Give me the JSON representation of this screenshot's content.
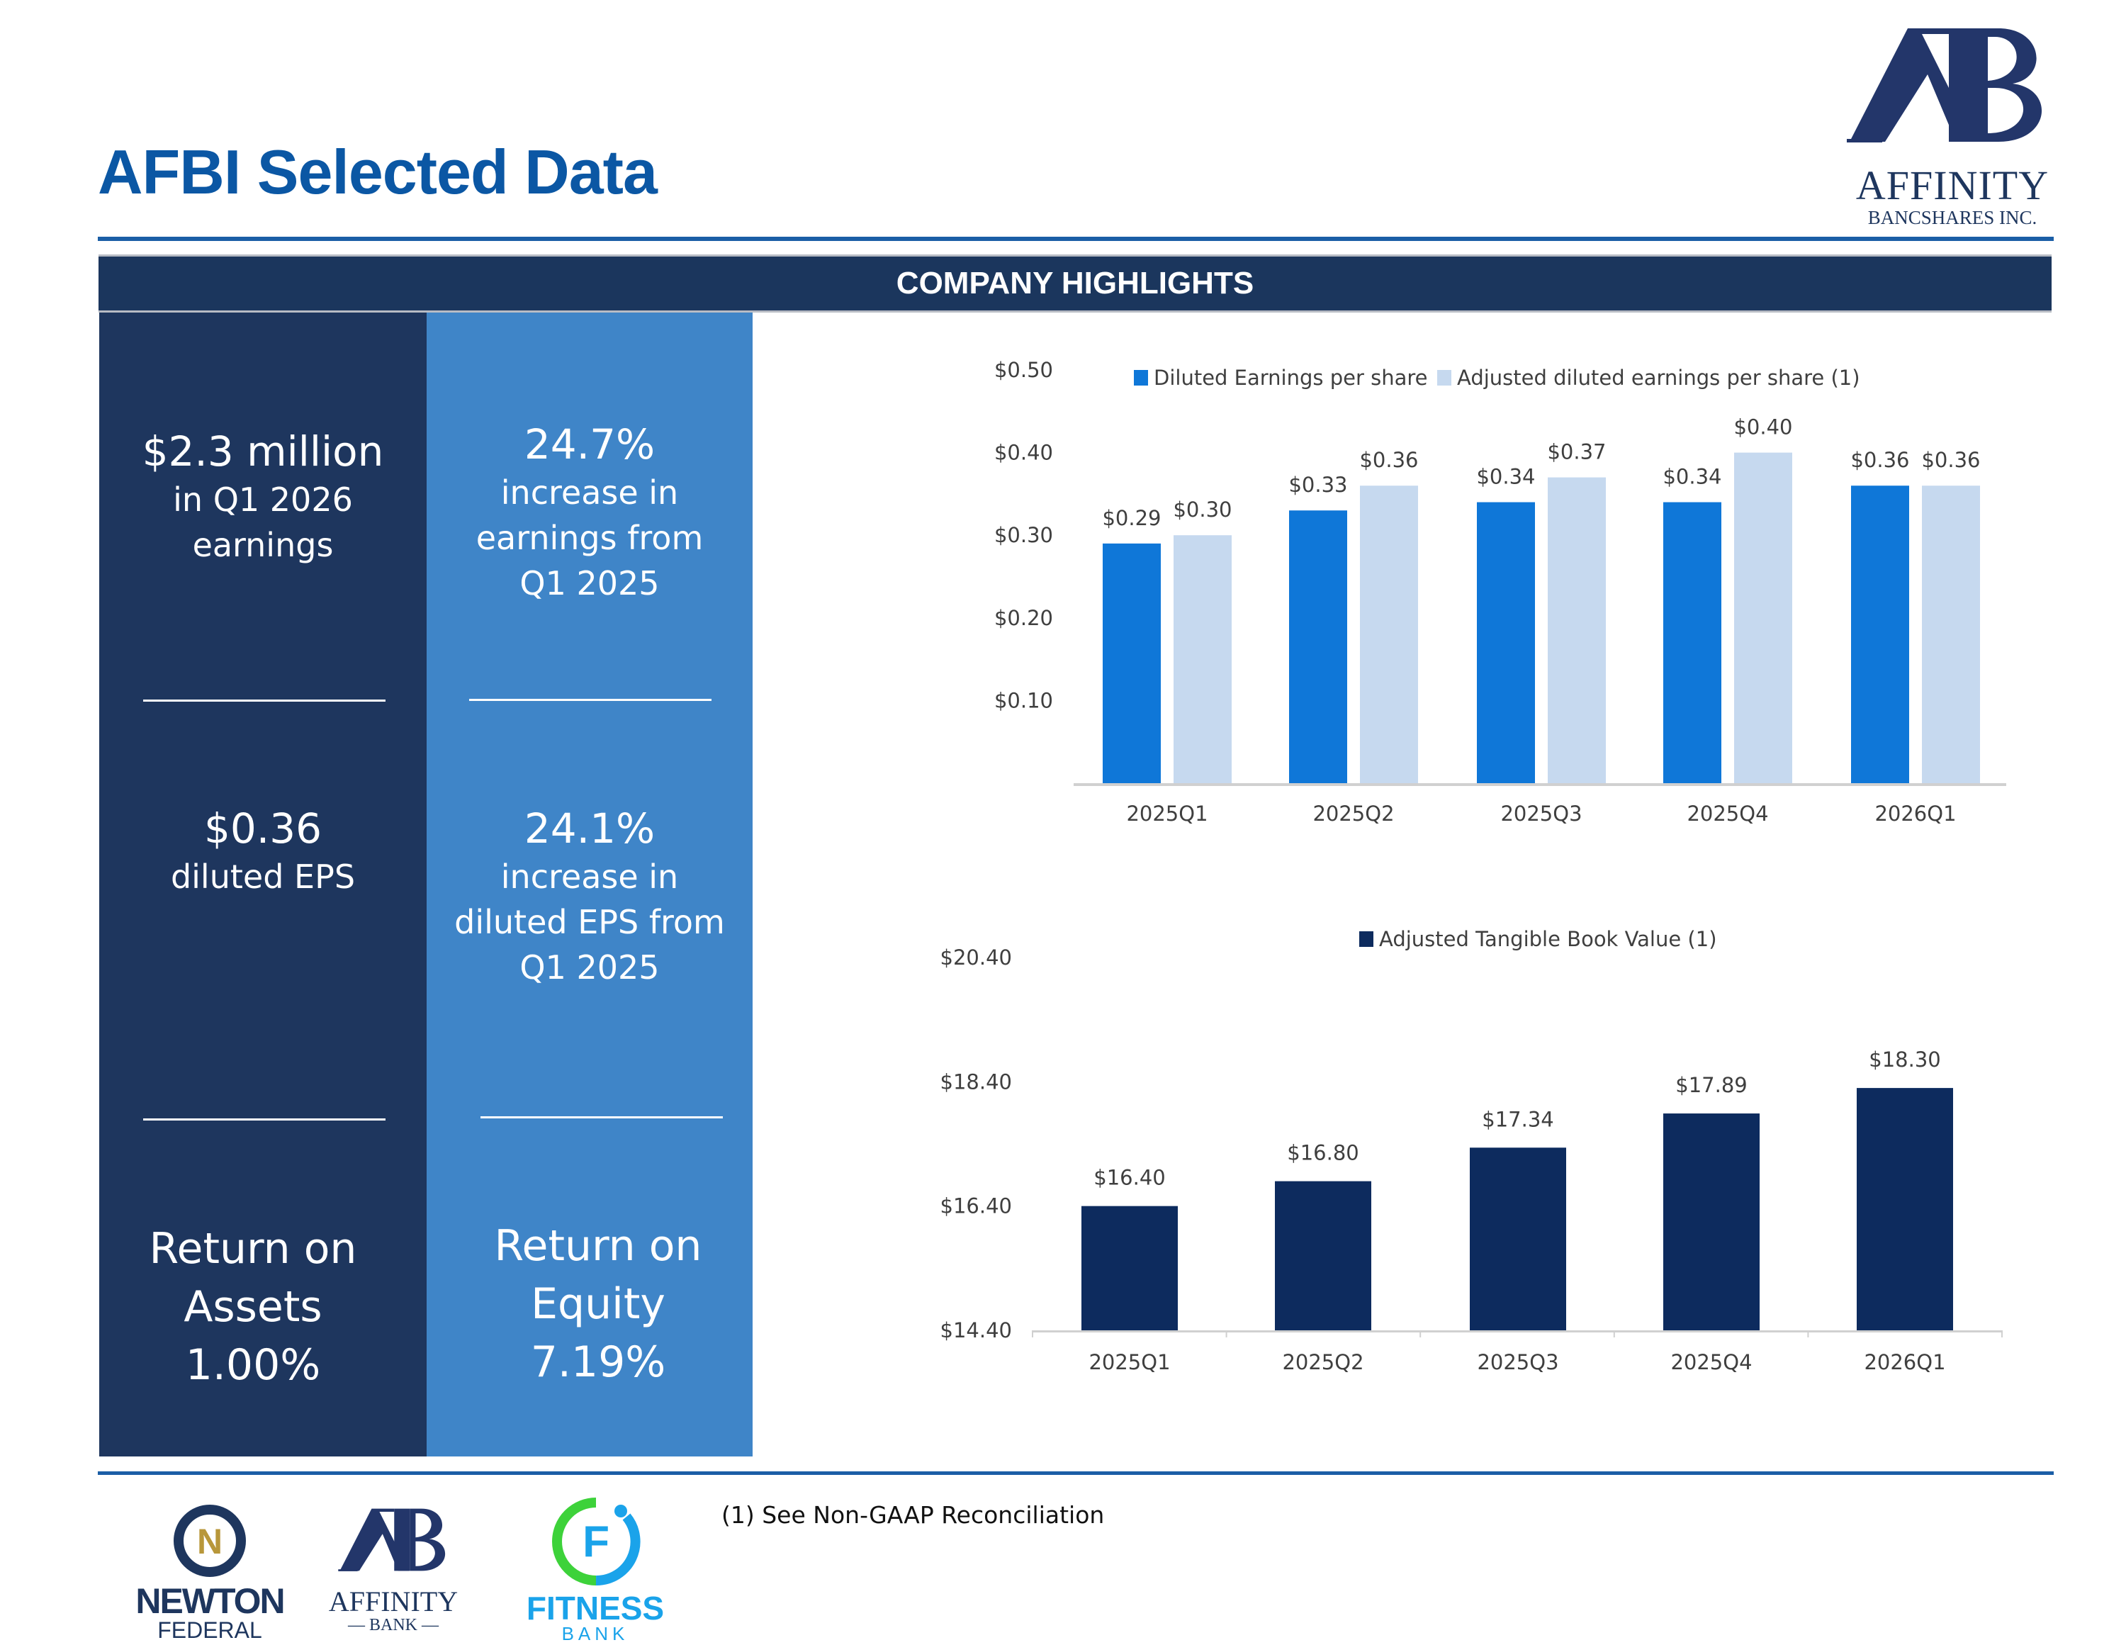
{
  "header": {
    "title": "AFBI Selected Data",
    "section_title": "COMPANY HIGHLIGHTS"
  },
  "brand": {
    "logo_monogram": "AB",
    "logo_name": "AFFINITY",
    "logo_sub": "BANCSHARES INC.",
    "colors": {
      "title_blue": "#0b57a4",
      "navy": "#1e365e",
      "light_blue": "#3f85c8",
      "eps_blue": "#0f77d8",
      "adj_eps": "#c6d9ef",
      "tbv_navy": "#0d2b5e"
    }
  },
  "highlights": {
    "left": [
      {
        "value": "$2.3 million",
        "lines": [
          "in Q1 2026",
          "earnings"
        ]
      },
      {
        "value": "$0.36",
        "lines": [
          "diluted EPS"
        ]
      },
      {
        "lines": [
          "Return on",
          "Assets",
          "1.00%"
        ]
      }
    ],
    "right": [
      {
        "value": "24.7%",
        "lines": [
          "increase in",
          "earnings from",
          "Q1 2025"
        ]
      },
      {
        "value": "24.1%",
        "lines": [
          "increase in",
          "diluted EPS from",
          "Q1 2025"
        ]
      },
      {
        "lines": [
          "Return on",
          "Equity",
          "7.19%"
        ]
      }
    ]
  },
  "chart_data": [
    {
      "type": "bar",
      "title": "",
      "categories": [
        "2025Q1",
        "2025Q2",
        "2025Q3",
        "2025Q4",
        "2026Q1"
      ],
      "series": [
        {
          "name": "Diluted Earnings per share",
          "color": "#0f77d8",
          "values": [
            0.29,
            0.33,
            0.34,
            0.34,
            0.36
          ],
          "labels": [
            "$0.29",
            "$0.33",
            "$0.34",
            "$0.34",
            "$0.36"
          ]
        },
        {
          "name": "Adjusted diluted earnings per share (1)",
          "color": "#c6d9ef",
          "values": [
            0.3,
            0.36,
            0.37,
            0.4,
            0.36
          ],
          "labels": [
            "$0.30",
            "$0.36",
            "$0.37",
            "$0.40",
            "$0.36"
          ]
        }
      ],
      "yticks": [
        "$0.10",
        "$0.20",
        "$0.30",
        "$0.40",
        "$0.50"
      ],
      "ytick_values": [
        0.1,
        0.2,
        0.3,
        0.4,
        0.5
      ],
      "ylim": [
        0,
        0.5
      ],
      "legend": "top",
      "grid": false
    },
    {
      "type": "bar",
      "title": "",
      "categories": [
        "2025Q1",
        "2025Q2",
        "2025Q3",
        "2025Q4",
        "2026Q1"
      ],
      "series": [
        {
          "name": "Adjusted Tangible Book Value (1)",
          "color": "#0d2b5e",
          "values": [
            16.4,
            16.8,
            17.34,
            17.89,
            18.3
          ],
          "labels": [
            "$16.40",
            "$16.80",
            "$17.34",
            "$17.89",
            "$18.30"
          ]
        }
      ],
      "yticks": [
        "$14.40",
        "$16.40",
        "$18.40",
        "$20.40"
      ],
      "ytick_values": [
        14.4,
        16.4,
        18.4,
        20.4
      ],
      "ylim": [
        14.4,
        20.4
      ],
      "legend": "top",
      "grid": false
    }
  ],
  "footer": {
    "footnote": "(1) See Non-GAAP Reconciliation",
    "logos": [
      {
        "name": "NEWTON",
        "sub": "FEDERAL",
        "mark": "N"
      },
      {
        "name": "AFFINITY",
        "sub": "— BANK —",
        "mark": "AB"
      },
      {
        "name": "FITNESS",
        "sub": "BANK",
        "mark": "F"
      }
    ]
  }
}
